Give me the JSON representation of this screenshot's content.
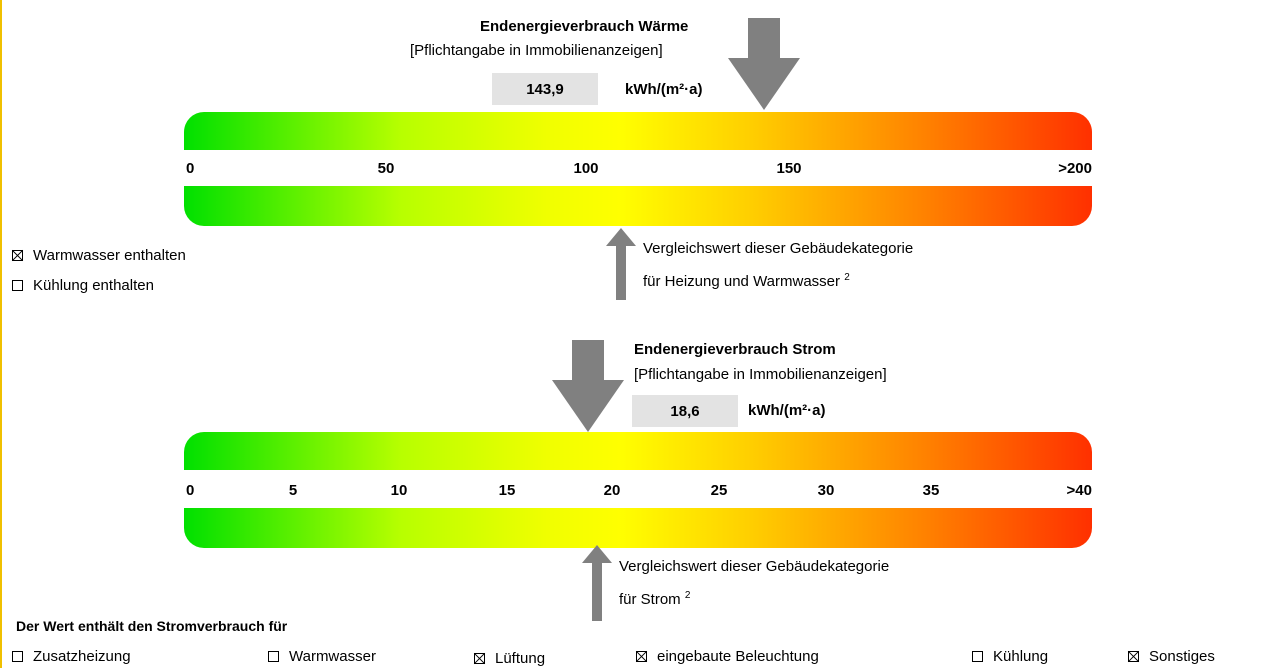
{
  "colors": {
    "arrow": "#808080",
    "value_box": "#e3e3e3",
    "scale_start": "#00e000",
    "scale_mid": "#ffff00",
    "scale_end": "#ff3000"
  },
  "heat": {
    "title": "Endenergieverbrauch Wärme",
    "subtitle": "[Pflichtangabe in Immobilienanzeigen]",
    "value": "143,9",
    "unit": "kWh/(m²·a)",
    "scale_ticks": [
      "0",
      "50",
      "100",
      "150",
      ">200"
    ],
    "comparison_line1": "Vergleichswert dieser Gebäudekategorie",
    "comparison_line2": "für Heizung und Warmwasser",
    "comparison_footnote": "2",
    "checkboxes": [
      {
        "label": "Warmwasser enthalten",
        "checked": true
      },
      {
        "label": "Kühlung enthalten",
        "checked": false
      }
    ]
  },
  "power": {
    "title": "Endenergieverbrauch Strom",
    "subtitle": "[Pflichtangabe in Immobilienanzeigen]",
    "value": "18,6",
    "unit": "kWh/(m²·a)",
    "scale_ticks": [
      "0",
      "5",
      "10",
      "15",
      "20",
      "25",
      "30",
      "35",
      ">40"
    ],
    "comparison_line1": "Vergleichswert dieser Gebäudekategorie",
    "comparison_line2": "für Strom",
    "comparison_footnote": "2"
  },
  "consumption": {
    "heading": "Der Wert enthält den Stromverbrauch für",
    "items": [
      {
        "label": "Zusatzheizung",
        "checked": false
      },
      {
        "label": "Warmwasser",
        "checked": false
      },
      {
        "label": "Lüftung",
        "checked": true
      },
      {
        "label": "eingebaute Beleuchtung",
        "checked": true
      },
      {
        "label": "Kühlung",
        "checked": false
      },
      {
        "label": "Sonstiges",
        "checked": true
      }
    ]
  }
}
